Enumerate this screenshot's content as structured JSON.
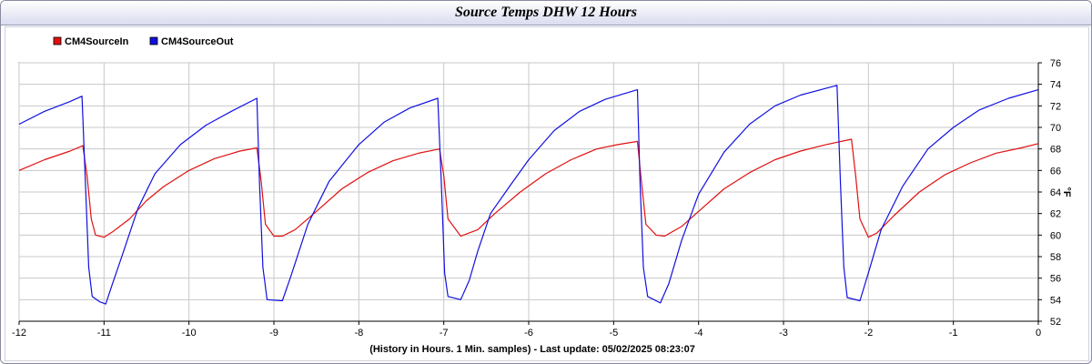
{
  "window": {
    "title": "Source Temps DHW 12 Hours"
  },
  "chart_data": {
    "type": "line",
    "title": "Source Temps DHW 12 Hours",
    "xlabel": "(History in Hours. 1 Min. samples) - Last update: 05/02/2025 08:23:07",
    "ylabel": "°F",
    "xlim": [
      -12,
      0
    ],
    "ylim": [
      52,
      76
    ],
    "x_ticks": [
      -12,
      -11,
      -10,
      -9,
      -8,
      -7,
      -6,
      -5,
      -4,
      -3,
      -2,
      -1,
      0
    ],
    "y_ticks": [
      52,
      54,
      56,
      58,
      60,
      62,
      64,
      66,
      68,
      70,
      72,
      74,
      76
    ],
    "grid": true,
    "legend_position": "top-left",
    "series": [
      {
        "name": "CM4SourceIn",
        "color": "#e01010",
        "points": [
          [
            -12.0,
            66.0
          ],
          [
            -11.7,
            67.0
          ],
          [
            -11.4,
            67.8
          ],
          [
            -11.25,
            68.3
          ],
          [
            -11.2,
            65.5
          ],
          [
            -11.15,
            61.5
          ],
          [
            -11.1,
            60.0
          ],
          [
            -11.0,
            59.8
          ],
          [
            -10.9,
            60.3
          ],
          [
            -10.7,
            61.5
          ],
          [
            -10.5,
            63.2
          ],
          [
            -10.3,
            64.5
          ],
          [
            -10.0,
            66.0
          ],
          [
            -9.7,
            67.1
          ],
          [
            -9.4,
            67.8
          ],
          [
            -9.2,
            68.1
          ],
          [
            -9.15,
            65.0
          ],
          [
            -9.1,
            61.0
          ],
          [
            -9.0,
            59.9
          ],
          [
            -8.9,
            59.9
          ],
          [
            -8.75,
            60.5
          ],
          [
            -8.5,
            62.2
          ],
          [
            -8.2,
            64.3
          ],
          [
            -7.9,
            65.8
          ],
          [
            -7.6,
            66.9
          ],
          [
            -7.3,
            67.6
          ],
          [
            -7.05,
            68.0
          ],
          [
            -7.0,
            65.5
          ],
          [
            -6.95,
            61.5
          ],
          [
            -6.8,
            59.9
          ],
          [
            -6.6,
            60.5
          ],
          [
            -6.4,
            62.0
          ],
          [
            -6.1,
            64.0
          ],
          [
            -5.8,
            65.7
          ],
          [
            -5.5,
            67.0
          ],
          [
            -5.2,
            68.0
          ],
          [
            -4.95,
            68.4
          ],
          [
            -4.72,
            68.7
          ],
          [
            -4.68,
            65.5
          ],
          [
            -4.62,
            61.0
          ],
          [
            -4.5,
            60.0
          ],
          [
            -4.4,
            59.9
          ],
          [
            -4.2,
            60.8
          ],
          [
            -4.0,
            62.2
          ],
          [
            -3.7,
            64.3
          ],
          [
            -3.4,
            65.8
          ],
          [
            -3.1,
            67.0
          ],
          [
            -2.8,
            67.8
          ],
          [
            -2.5,
            68.4
          ],
          [
            -2.2,
            68.9
          ],
          [
            -2.15,
            65.5
          ],
          [
            -2.1,
            61.5
          ],
          [
            -2.0,
            59.8
          ],
          [
            -1.9,
            60.2
          ],
          [
            -1.7,
            61.8
          ],
          [
            -1.4,
            64.0
          ],
          [
            -1.1,
            65.6
          ],
          [
            -0.8,
            66.7
          ],
          [
            -0.5,
            67.6
          ],
          [
            -0.2,
            68.1
          ],
          [
            0.0,
            68.5
          ]
        ]
      },
      {
        "name": "CM4SourceOut",
        "color": "#1010e0",
        "points": [
          [
            -12.0,
            70.3
          ],
          [
            -11.7,
            71.5
          ],
          [
            -11.4,
            72.4
          ],
          [
            -11.26,
            72.9
          ],
          [
            -11.22,
            65.0
          ],
          [
            -11.18,
            57.0
          ],
          [
            -11.14,
            54.3
          ],
          [
            -11.05,
            53.8
          ],
          [
            -10.98,
            53.6
          ],
          [
            -10.9,
            55.5
          ],
          [
            -10.8,
            57.8
          ],
          [
            -10.6,
            62.5
          ],
          [
            -10.4,
            65.7
          ],
          [
            -10.1,
            68.4
          ],
          [
            -9.8,
            70.2
          ],
          [
            -9.5,
            71.5
          ],
          [
            -9.2,
            72.7
          ],
          [
            -9.17,
            65.0
          ],
          [
            -9.13,
            57.0
          ],
          [
            -9.08,
            54.0
          ],
          [
            -8.9,
            53.9
          ],
          [
            -8.8,
            56.2
          ],
          [
            -8.6,
            61.0
          ],
          [
            -8.35,
            65.0
          ],
          [
            -8.0,
            68.4
          ],
          [
            -7.7,
            70.5
          ],
          [
            -7.4,
            71.8
          ],
          [
            -7.07,
            72.7
          ],
          [
            -7.03,
            65.0
          ],
          [
            -6.99,
            56.5
          ],
          [
            -6.95,
            54.3
          ],
          [
            -6.8,
            54.0
          ],
          [
            -6.7,
            55.8
          ],
          [
            -6.6,
            58.5
          ],
          [
            -6.45,
            62.0
          ],
          [
            -6.2,
            64.8
          ],
          [
            -6.0,
            67.0
          ],
          [
            -5.7,
            69.7
          ],
          [
            -5.4,
            71.5
          ],
          [
            -5.1,
            72.6
          ],
          [
            -4.72,
            73.5
          ],
          [
            -4.69,
            65.0
          ],
          [
            -4.65,
            57.0
          ],
          [
            -4.6,
            54.3
          ],
          [
            -4.45,
            53.7
          ],
          [
            -4.35,
            55.5
          ],
          [
            -4.2,
            59.5
          ],
          [
            -4.0,
            63.8
          ],
          [
            -3.7,
            67.7
          ],
          [
            -3.4,
            70.3
          ],
          [
            -3.1,
            72.0
          ],
          [
            -2.8,
            73.0
          ],
          [
            -2.37,
            73.9
          ],
          [
            -2.33,
            65.0
          ],
          [
            -2.29,
            57.0
          ],
          [
            -2.25,
            54.2
          ],
          [
            -2.1,
            53.9
          ],
          [
            -2.0,
            56.5
          ],
          [
            -1.85,
            60.5
          ],
          [
            -1.6,
            64.5
          ],
          [
            -1.3,
            68.0
          ],
          [
            -1.0,
            70.0
          ],
          [
            -0.7,
            71.6
          ],
          [
            -0.35,
            72.7
          ],
          [
            0.0,
            73.5
          ]
        ]
      }
    ]
  }
}
